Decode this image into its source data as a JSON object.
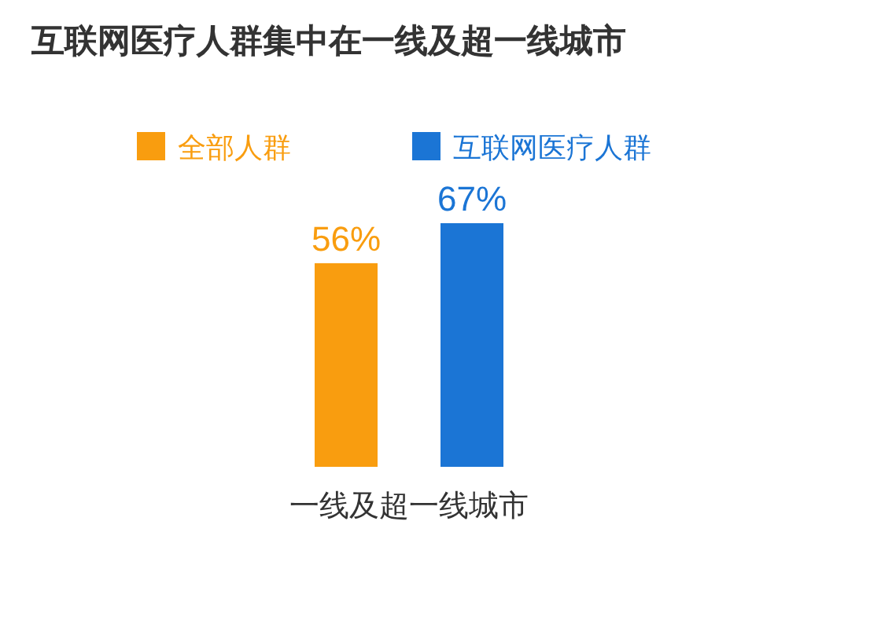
{
  "chart_data": {
    "type": "bar",
    "title": "互联网医疗人群集中在一线及超一线城市",
    "categories": [
      "一线及超一线城市"
    ],
    "legend": "top",
    "series": [
      {
        "name": "全部人群",
        "color": "#f99d0f",
        "values": [
          56
        ],
        "value_labels": [
          "56%"
        ]
      },
      {
        "name": "互联网医疗人群",
        "color": "#1b75d5",
        "values": [
          67
        ],
        "value_labels": [
          "67%"
        ]
      }
    ]
  }
}
